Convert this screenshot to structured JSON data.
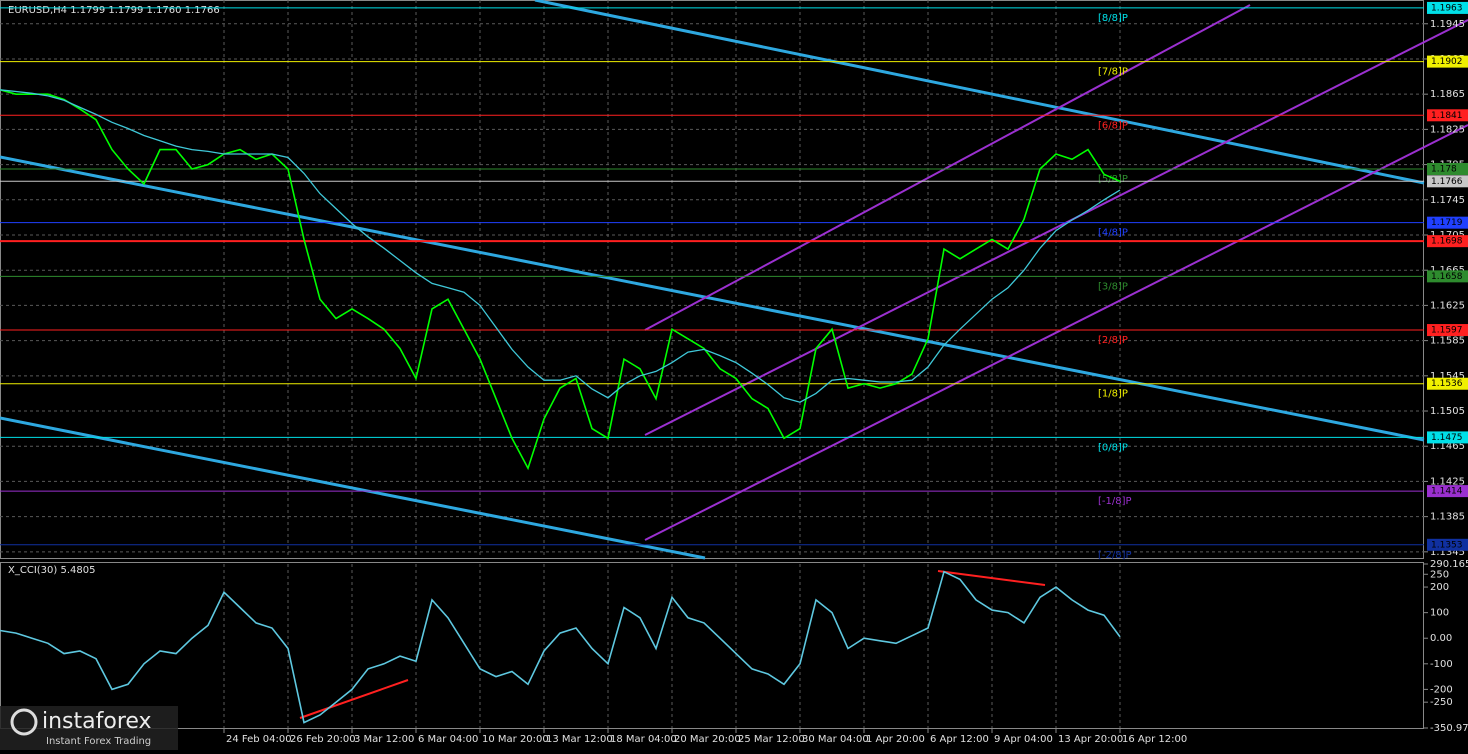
{
  "chart_data": [
    {
      "type": "line",
      "title": "EURUSD,H4  1.1799 1.1799 1.1760 1.1766",
      "x": [
        0,
        1,
        2,
        3,
        4,
        5,
        6,
        7,
        8,
        9,
        10,
        11,
        12,
        13,
        14,
        15,
        16,
        17,
        18,
        19,
        20,
        21,
        22,
        23,
        24,
        25,
        26,
        27,
        28,
        29,
        30,
        31,
        32,
        33,
        34,
        35,
        36,
        37,
        38,
        39,
        40,
        41,
        42,
        43,
        44,
        45,
        46,
        47,
        48,
        49,
        50,
        51,
        52,
        53,
        54,
        55,
        56,
        57,
        58,
        59,
        60,
        61,
        62,
        63,
        64,
        65,
        66,
        67,
        68,
        69,
        70
      ],
      "xlim": [
        0,
        89
      ],
      "xticks": [
        {
          "value": 14,
          "label": "24 Feb 04:00"
        },
        {
          "value": 18,
          "label": "26 Feb 20:00"
        },
        {
          "value": 22,
          "label": "3 Mar 12:00"
        },
        {
          "value": 26,
          "label": "6 Mar 04:00"
        },
        {
          "value": 30,
          "label": "10 Mar 20:00"
        },
        {
          "value": 34,
          "label": "13 Mar 12:00"
        },
        {
          "value": 38,
          "label": "18 Mar 04:00"
        },
        {
          "value": 42,
          "label": "20 Mar 20:00"
        },
        {
          "value": 46,
          "label": "25 Mar 12:00"
        },
        {
          "value": 50,
          "label": "30 Mar 04:00"
        },
        {
          "value": 54,
          "label": "1 Apr 20:00"
        },
        {
          "value": 58,
          "label": "6 Apr 12:00"
        },
        {
          "value": 62,
          "label": "9 Apr 04:00"
        },
        {
          "value": 66,
          "label": "13 Apr 20:00"
        },
        {
          "value": 70,
          "label": "16 Apr 12:00"
        }
      ],
      "ylim": [
        1.1338,
        1.1972
      ],
      "yticks": [
        1.1345,
        1.1385,
        1.1425,
        1.1465,
        1.1505,
        1.1545,
        1.1585,
        1.1625,
        1.1665,
        1.1705,
        1.1745,
        1.1785,
        1.1825,
        1.1865,
        1.1905,
        1.1945
      ],
      "grid": true,
      "series": [
        {
          "color": "#00ff00",
          "values": [
            1.187,
            1.1865,
            1.1865,
            1.1865,
            1.1859,
            1.1848,
            1.1836,
            1.1802,
            1.178,
            1.1763,
            1.1802,
            1.1802,
            1.178,
            1.1785,
            1.1797,
            1.1802,
            1.1791,
            1.1797,
            1.178,
            1.17,
            1.1632,
            1.161,
            1.1621,
            1.161,
            1.1598,
            1.1576,
            1.1542,
            1.1621,
            1.1632,
            1.1598,
            1.1564,
            1.1519,
            1.1474,
            1.144,
            1.1496,
            1.1531,
            1.1542,
            1.1485,
            1.1474,
            1.1564,
            1.1553,
            1.1519,
            1.1598,
            1.1587,
            1.1576,
            1.1553,
            1.1542,
            1.1519,
            1.1508,
            1.1474,
            1.1485,
            1.1576,
            1.1598,
            1.1531,
            1.1536,
            1.1531,
            1.1536,
            1.1547,
            1.1587,
            1.1689,
            1.1678,
            1.1689,
            1.17,
            1.1689,
            1.1723,
            1.178,
            1.1797,
            1.1791,
            1.1802,
            1.1774,
            1.1766
          ]
        },
        {
          "color": "#3fc8d8",
          "values": [
            1.187,
            1.1868,
            1.1866,
            1.1863,
            1.1858,
            1.185,
            1.1842,
            1.1833,
            1.1826,
            1.1818,
            1.1812,
            1.1806,
            1.1802,
            1.18,
            1.1797,
            1.1797,
            1.1797,
            1.1797,
            1.1793,
            1.1775,
            1.1752,
            1.1735,
            1.1718,
            1.1703,
            1.169,
            1.1676,
            1.1662,
            1.165,
            1.1645,
            1.164,
            1.1625,
            1.16,
            1.1575,
            1.1555,
            1.154,
            1.154,
            1.1545,
            1.153,
            1.152,
            1.1535,
            1.1545,
            1.155,
            1.156,
            1.1572,
            1.1575,
            1.1568,
            1.156,
            1.1548,
            1.1535,
            1.152,
            1.1515,
            1.1525,
            1.154,
            1.1542,
            1.154,
            1.1538,
            1.1538,
            1.154,
            1.1555,
            1.158,
            1.1598,
            1.1615,
            1.1632,
            1.1645,
            1.1665,
            1.169,
            1.171,
            1.1722,
            1.1733,
            1.1745,
            1.1756
          ]
        }
      ],
      "levels": [
        {
          "value": 1.1963,
          "label": "[8/8]P",
          "color": "#00e0e8"
        },
        {
          "value": 1.1902,
          "label": "[7/8]P",
          "color": "#f0f000"
        },
        {
          "value": 1.1841,
          "label": "[6/8]P",
          "color": "#ff2020"
        },
        {
          "value": 1.178,
          "label": "[5/8]P",
          "color": "#2e8b2e"
        },
        {
          "value": 1.1719,
          "label": "[4/8]P",
          "color": "#2040ff"
        },
        {
          "value": 1.1658,
          "label": "[3/8]P",
          "color": "#2e8b2e"
        },
        {
          "value": 1.1597,
          "label": "[2/8]P",
          "color": "#ff2020"
        },
        {
          "value": 1.1536,
          "label": "[1/8]P",
          "color": "#f0f000"
        },
        {
          "value": 1.1475,
          "label": "[0/8]P",
          "color": "#00e0e8"
        },
        {
          "value": 1.1414,
          "label": "[-1/8]P",
          "color": "#9b30d0"
        },
        {
          "value": 1.1353,
          "label": "[-2/8]P",
          "color": "#1030a0"
        }
      ],
      "price_lines": [
        {
          "value": 1.1766,
          "color": "#c8c8c8"
        },
        {
          "value": 1.1698,
          "color": "#ff2020"
        }
      ]
    },
    {
      "type": "line",
      "title": "X_CCI(30) 5.4805",
      "x": [
        0,
        1,
        2,
        3,
        4,
        5,
        6,
        7,
        8,
        9,
        10,
        11,
        12,
        13,
        14,
        15,
        16,
        17,
        18,
        19,
        20,
        21,
        22,
        23,
        24,
        25,
        26,
        27,
        28,
        29,
        30,
        31,
        32,
        33,
        34,
        35,
        36,
        37,
        38,
        39,
        40,
        41,
        42,
        43,
        44,
        45,
        46,
        47,
        48,
        49,
        50,
        51,
        52,
        53,
        54,
        55,
        56,
        57,
        58,
        59,
        60,
        61,
        62,
        63,
        64,
        65,
        66,
        67,
        68,
        69,
        70
      ],
      "xlim": [
        0,
        89
      ],
      "ylim": [
        -350.973,
        290.1656
      ],
      "yticks": [
        290.1656,
        250,
        200,
        100,
        {
          "value": 0,
          "label": "0.00"
        },
        -100,
        -200,
        -250,
        -350.973
      ],
      "series": [
        {
          "color": "#5ec8e0",
          "values": [
            30,
            20,
            0,
            -20,
            -60,
            -50,
            -80,
            -200,
            -180,
            -100,
            -50,
            -60,
            0,
            50,
            180,
            120,
            60,
            40,
            -40,
            -330,
            -300,
            -250,
            -200,
            -120,
            -100,
            -70,
            -90,
            150,
            80,
            -20,
            -120,
            -150,
            -130,
            -180,
            -50,
            20,
            40,
            -40,
            -100,
            120,
            80,
            -40,
            160,
            80,
            60,
            0,
            -60,
            -120,
            -140,
            -180,
            -100,
            150,
            100,
            -40,
            0,
            -10,
            -20,
            10,
            40,
            260,
            230,
            150,
            110,
            100,
            60,
            160,
            200,
            150,
            110,
            90,
            5.4805
          ]
        }
      ]
    }
  ],
  "logo": {
    "name": "instaforex",
    "tagline": "Instant Forex Trading"
  }
}
